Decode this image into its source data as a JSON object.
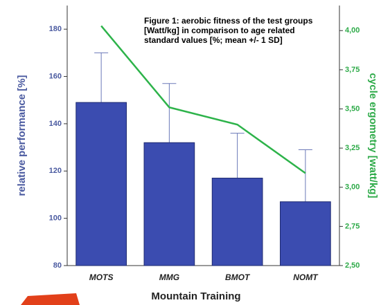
{
  "chart_data": {
    "type": "bar",
    "title": [
      "Figure 1: aerobic fitness of the test groups",
      "[Watt/kg] in comparison to age related",
      "standard values [%; mean +/- 1 SD]"
    ],
    "x_label": "Mountain Training",
    "y_label": "relative performance [%]",
    "y2_label": "cycle ergometry [watt/kg]",
    "categories": [
      "MOTS",
      "MMG",
      "BMOT",
      "NOMT"
    ],
    "series": [
      {
        "type": "bar",
        "color": "#3b4cb0",
        "values": [
          149,
          132,
          117,
          107
        ],
        "errors": [
          21,
          25,
          19,
          22
        ]
      },
      {
        "type": "line",
        "color": "#2db34a",
        "axis": "y2",
        "values": [
          4.03,
          3.51,
          3.4,
          3.09
        ]
      }
    ],
    "ylim": [
      80,
      190
    ],
    "yticks": [
      80,
      100,
      120,
      140,
      160,
      180
    ],
    "y2lim": [
      2.5,
      4.16
    ],
    "y2ticks": [
      {
        "value": 2.5,
        "label": "2,50"
      },
      {
        "value": 2.75,
        "label": "2,75"
      },
      {
        "value": 3.0,
        "label": "3,00"
      },
      {
        "value": 3.25,
        "label": "3,25"
      },
      {
        "value": 3.5,
        "label": "3,50"
      },
      {
        "value": 3.75,
        "label": "3,75"
      },
      {
        "value": 4.0,
        "label": "4,00"
      }
    ]
  }
}
